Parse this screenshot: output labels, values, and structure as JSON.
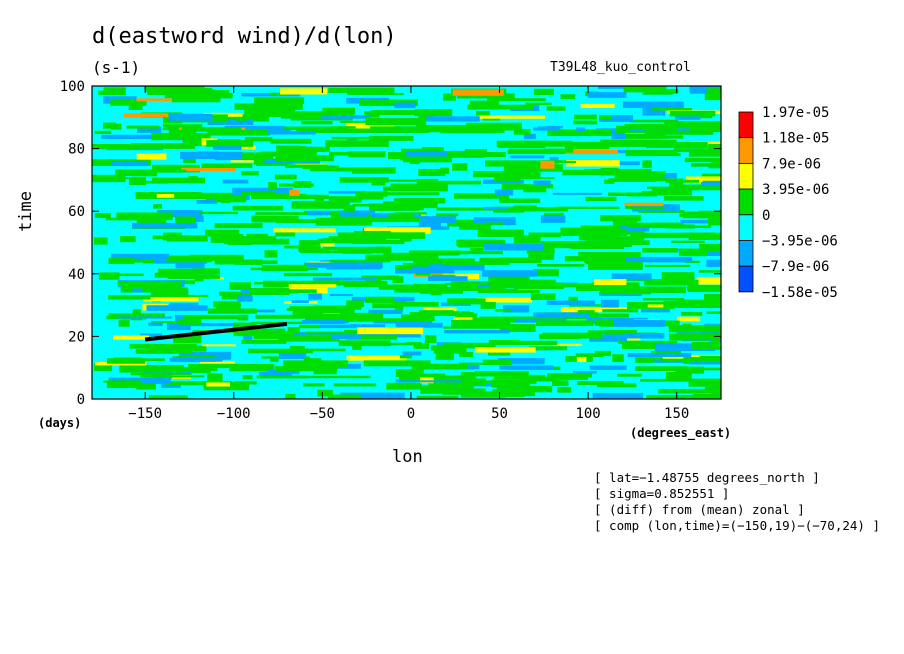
{
  "chart_data": {
    "type": "heatmap",
    "title": "d(eastword wind)/d(lon)",
    "units": "(s-1)",
    "run_label": "T39L48_kuo_control",
    "xlabel": "lon",
    "ylabel": "time",
    "x_units": "(degrees_east)",
    "y_units": "(days)",
    "xlim": [
      -180,
      175
    ],
    "ylim": [
      0,
      100
    ],
    "x_ticks": [
      -150,
      -100,
      -50,
      0,
      50,
      100,
      150
    ],
    "y_ticks": [
      0,
      20,
      40,
      60,
      80,
      100
    ],
    "x_tick_labels": [
      "−150",
      "−100",
      "−50",
      "0",
      "50",
      "100",
      "150"
    ],
    "y_tick_labels": [
      "0",
      "20",
      "40",
      "60",
      "80",
      "100"
    ],
    "color_levels": [
      "1.97e-05",
      "1.18e-05",
      "7.9e-06",
      "3.95e-06",
      "0",
      "−3.95e-06",
      "−7.9e-06",
      "−1.58e-05"
    ],
    "colors": [
      "#ff0000",
      "#ff9900",
      "#ffff00",
      "#00dd00",
      "#00ffff",
      "#00aaff",
      "#0050ff"
    ],
    "dominant_colors": [
      "#00ffff",
      "#00dd00"
    ],
    "overlay_line": {
      "x": [
        -150,
        -70
      ],
      "y": [
        19,
        24
      ],
      "color": "#000000"
    },
    "annotations": [
      "[ lat=−1.48755 degrees_north ]",
      "[ sigma=0.852551 ]",
      "[ (diff) from (mean) zonal ]",
      "[ comp (lon,time)=(−150,19)−(−70,24) ]"
    ]
  }
}
